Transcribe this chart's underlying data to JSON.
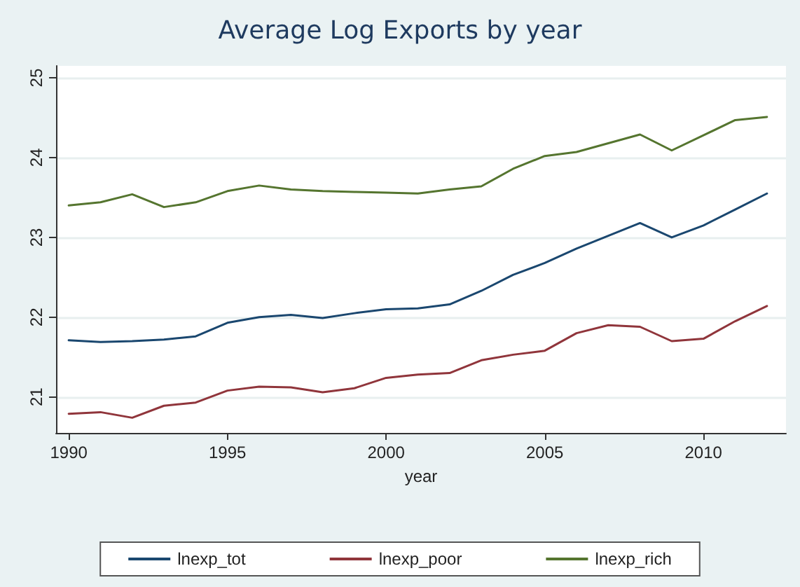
{
  "chart_data": {
    "type": "line",
    "title": "Average Log Exports by year",
    "xlabel": "year",
    "x": [
      1990,
      1991,
      1992,
      1993,
      1994,
      1995,
      1996,
      1997,
      1998,
      1999,
      2000,
      2001,
      2002,
      2003,
      2004,
      2005,
      2006,
      2007,
      2008,
      2009,
      2010,
      2011,
      2012
    ],
    "series": [
      {
        "name": "lnexp_tot",
        "color": "#1a476f",
        "values": [
          21.71,
          21.69,
          21.7,
          21.72,
          21.76,
          21.93,
          22.0,
          22.03,
          21.99,
          22.05,
          22.1,
          22.11,
          22.16,
          22.33,
          22.53,
          22.68,
          22.86,
          23.02,
          23.18,
          23.0,
          23.15,
          23.35,
          23.55
        ]
      },
      {
        "name": "lnexp_poor",
        "color": "#90353b",
        "values": [
          20.79,
          20.81,
          20.74,
          20.89,
          20.93,
          21.08,
          21.13,
          21.12,
          21.06,
          21.11,
          21.24,
          21.28,
          21.3,
          21.46,
          21.53,
          21.58,
          21.8,
          21.9,
          21.88,
          21.7,
          21.73,
          21.95,
          22.14
        ]
      },
      {
        "name": "lnexp_rich",
        "color": "#55752f",
        "values": [
          23.4,
          23.44,
          23.54,
          23.38,
          23.44,
          23.58,
          23.65,
          23.6,
          23.58,
          23.57,
          23.56,
          23.55,
          23.6,
          23.64,
          23.86,
          24.02,
          24.07,
          24.18,
          24.29,
          24.09,
          24.28,
          24.47,
          24.51
        ]
      }
    ],
    "xlim": [
      1989.6,
      2012.6
    ],
    "xticks": [
      1990,
      1995,
      2000,
      2005,
      2010
    ],
    "ylim": [
      20.55,
      25.15
    ],
    "yticks": [
      21,
      22,
      23,
      24,
      25
    ],
    "grid": "y",
    "legend": "bottom",
    "marker": "none",
    "line_style": "solid"
  }
}
